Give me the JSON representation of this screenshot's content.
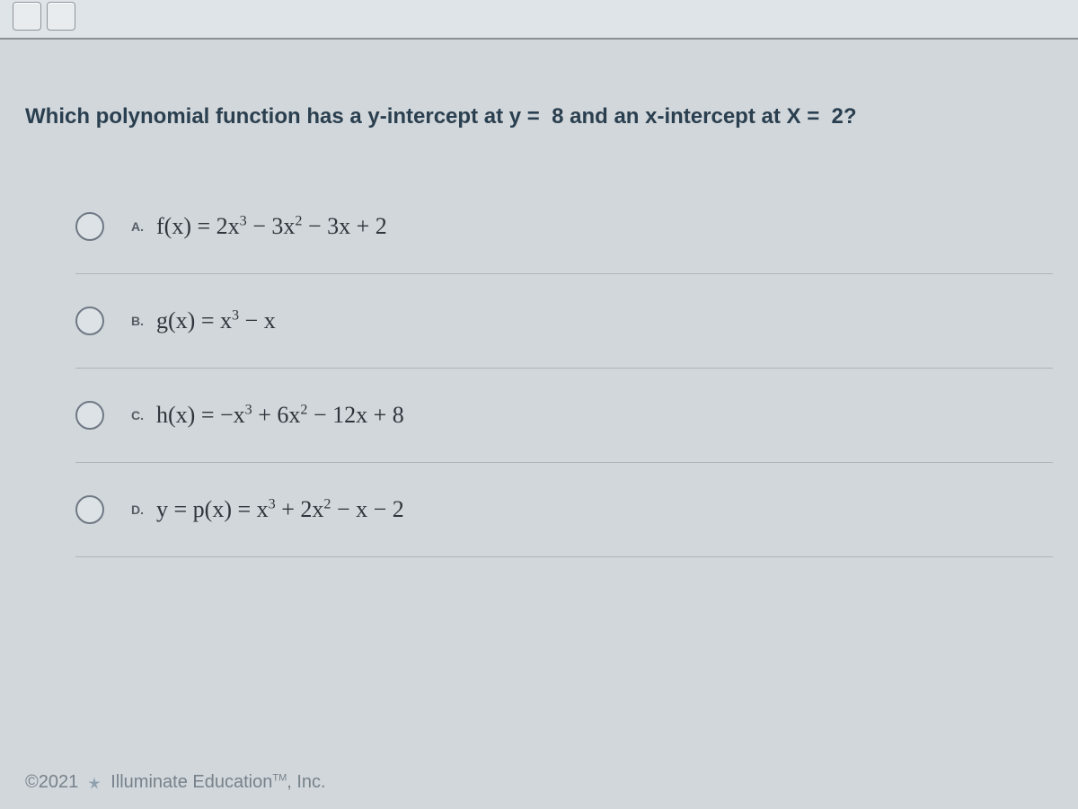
{
  "question_html": "Which polynomial function has a <b>y-intercept</b> at y =  8 and an <b>x-intercept</b> at X =  2?",
  "options": [
    {
      "letter": "A.",
      "expr_html": "f(x) = 2x<sup>3</sup> − 3x<sup>2</sup> − 3x + 2"
    },
    {
      "letter": "B.",
      "expr_html": "g(x) = x<sup>3</sup> − x"
    },
    {
      "letter": "C.",
      "expr_html": "h(x) = −x<sup>3</sup> + 6x<sup>2</sup> − 12x + 8"
    },
    {
      "letter": "D.",
      "expr_html": "y = p(x) = x<sup>3</sup> + 2x<sup>2</sup> − x − 2"
    }
  ],
  "footer": {
    "copyright": "©2021",
    "brand_html": "Illuminate Education<span class=\"tm\">TM</span>, Inc."
  },
  "colors": {
    "question_text": "#2a3f4f",
    "expr_text": "#2e353c",
    "divider": "#aeb5bb",
    "radio_border": "#6f7884",
    "footer_text": "#77828b"
  }
}
